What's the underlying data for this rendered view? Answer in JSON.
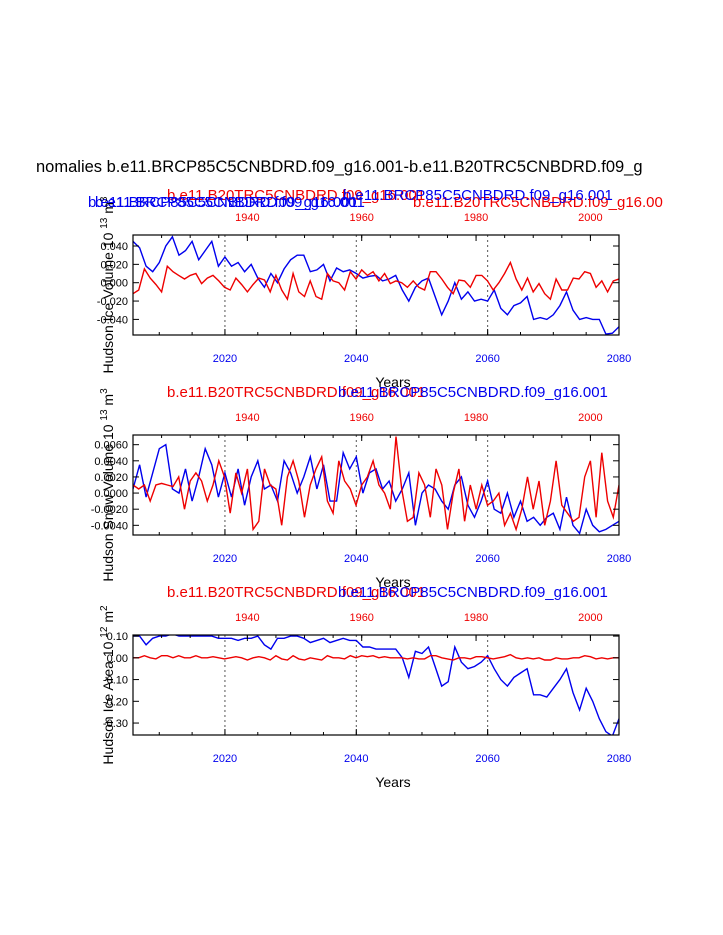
{
  "page": {
    "main_title": "nomalies b.e11.BRCP85C5CNBDRD.f09_g16.001-b.e11.B20TRC5CNBDRD.f09_g",
    "overlap_header_blue": "b.e11.BRCP85C5CNBDRD.f09_g16.001",
    "overlap_header_red_left": "b.e11.B20TRC5CNBDRD.f09_g16.001",
    "overlap_header_red_right": "b.e11.B20TRC5CNBDRD.f09_g16.00"
  },
  "colors": {
    "blue": "#0000ee",
    "red": "#ee0000",
    "axis": "#000000",
    "grid": "#555555"
  },
  "chart_data": [
    {
      "type": "line",
      "title_red": "b.e11.B20TRC5CNBDRD.f09_g16.001",
      "title_blue": "b.e11.BRCP85C5CNBDRD.f09_g16.001",
      "ylabel": "Hudson Ice Volume 10^13 m^3",
      "ylabel_main": "Hudson Ice Volume 10",
      "ylabel_exp": "13",
      "ylabel_unit": "m",
      "ylabel_unit_exp": "3",
      "xlabel": "Years",
      "bottom_xlim": [
        2006,
        2080
      ],
      "bottom_ticks": [
        "2020",
        "2040",
        "2060",
        "2080"
      ],
      "top_xlim": [
        1920,
        2005
      ],
      "top_ticks": [
        "1940",
        "1960",
        "1980",
        "2000"
      ],
      "ylim": [
        -0.057,
        0.052
      ],
      "yticks": [
        0.04,
        0.02,
        0.0,
        -0.02,
        -0.04
      ],
      "ytick_labels": [
        "0.040",
        "0.020",
        "0.000",
        "-0.020",
        "-0.040"
      ],
      "vlines": [
        2020,
        2040,
        2060
      ],
      "series": [
        {
          "name": "b.e11.BRCP85C5CNBDRD.f09_g16.001",
          "color": "blue",
          "x_start": 2006,
          "values": [
            0.045,
            0.038,
            0.018,
            0.012,
            0.022,
            0.04,
            0.05,
            0.03,
            0.035,
            0.045,
            0.025,
            0.035,
            0.045,
            0.018,
            0.028,
            0.018,
            0.022,
            0.012,
            0.02,
            0.005,
            -0.005,
            0.01,
            0.0,
            0.015,
            0.025,
            0.03,
            0.03,
            0.012,
            0.014,
            0.02,
            0.002,
            0.016,
            0.012,
            0.014,
            0.01,
            0.005,
            0.007,
            0.008,
            0.002,
            0.004,
            0.008,
            -0.008,
            -0.02,
            -0.005,
            0.002,
            0.005,
            -0.015,
            -0.035,
            -0.02,
            0.0,
            -0.018,
            -0.01,
            -0.02,
            -0.018,
            -0.02,
            -0.008,
            -0.028,
            -0.035,
            -0.025,
            -0.022,
            -0.015,
            -0.04,
            -0.038,
            -0.04,
            -0.035,
            -0.025,
            -0.01,
            -0.03,
            -0.04,
            -0.038,
            -0.04,
            -0.04,
            -0.056,
            -0.055,
            -0.048
          ]
        },
        {
          "name": "b.e11.B20TRC5CNBDRD.f09_g16.001",
          "color": "red",
          "x_start": 1920,
          "values": [
            -0.012,
            -0.008,
            0.015,
            0.005,
            -0.002,
            -0.01,
            0.018,
            0.012,
            0.008,
            0.004,
            0.008,
            0.01,
            -0.001,
            0.005,
            0.008,
            0.002,
            -0.005,
            -0.008,
            0.005,
            -0.002,
            -0.01,
            -0.002,
            0.005,
            0.003,
            -0.01,
            0.008,
            -0.008,
            -0.018,
            0.01,
            -0.01,
            -0.015,
            0.002,
            -0.015,
            -0.018,
            0.01,
            0.002,
            0.0,
            -0.008,
            0.012,
            0.004,
            0.014,
            0.008,
            0.012,
            0.002,
            0.01,
            -0.001,
            0.002,
            0.0,
            -0.005,
            0.002,
            -0.005,
            -0.008,
            0.012,
            0.012,
            0.004,
            -0.005,
            -0.012,
            0.003,
            0.002,
            -0.005,
            0.008,
            0.008,
            0.002,
            -0.008,
            0.0,
            0.01,
            0.022,
            0.004,
            -0.008,
            0.005,
            -0.01,
            -0.001,
            -0.012,
            -0.018,
            0.004,
            -0.008,
            -0.008,
            0.005,
            0.004,
            0.012,
            0.01,
            -0.005,
            0.002,
            -0.01,
            0.002,
            0.004,
            -0.005,
            -0.01
          ]
        }
      ]
    },
    {
      "type": "line",
      "title_red": "b.e11.B20TRC5CNBDRD.f09_g16.001",
      "title_blue": "b.e11.BRCP85C5CNBDRD.f09_g16.001",
      "ylabel": "Hudson Snow Volume 10^13 m^3",
      "ylabel_main": "Hudson Snow Volume 10",
      "ylabel_exp": "13",
      "ylabel_unit": "m",
      "ylabel_unit_exp": "3",
      "xlabel": "Years",
      "bottom_xlim": [
        2006,
        2080
      ],
      "bottom_ticks": [
        "2020",
        "2040",
        "2060",
        "2080"
      ],
      "top_xlim": [
        1920,
        2005
      ],
      "top_ticks": [
        "1940",
        "1960",
        "1980",
        "2000"
      ],
      "ylim": [
        -0.0052,
        0.0072
      ],
      "yticks": [
        0.006,
        0.004,
        0.002,
        0.0,
        -0.002,
        -0.004
      ],
      "ytick_labels": [
        "0.0060",
        "0.0040",
        "0.0020",
        "0.0000",
        "-0.0020",
        "-0.0040"
      ],
      "vlines": [
        2020,
        2040,
        2060
      ],
      "series": [
        {
          "name": "b.e11.BRCP85C5CNBDRD.f09_g16.001",
          "color": "blue",
          "x_start": 2006,
          "values": [
            0.0005,
            0.0035,
            -0.0005,
            0.0025,
            0.0055,
            0.006,
            0.0005,
            0.0,
            0.003,
            -0.001,
            0.002,
            0.0055,
            0.0035,
            -0.0005,
            0.0025,
            -0.0005,
            0.003,
            -0.0015,
            0.002,
            0.004,
            0.0005,
            0.001,
            -0.001,
            0.004,
            0.0025,
            0.0,
            0.002,
            0.0045,
            0.0005,
            0.0035,
            -0.001,
            -0.001,
            0.005,
            0.003,
            0.0045,
            0.0,
            0.0025,
            0.003,
            0.0005,
            0.0015,
            -0.001,
            0.0005,
            0.0025,
            -0.004,
            0.0,
            0.001,
            0.0005,
            -0.001,
            -0.002,
            0.001,
            0.002,
            -0.0015,
            -0.003,
            -0.001,
            0.0015,
            -0.002,
            -0.0025,
            0.0,
            -0.003,
            -0.001,
            -0.0035,
            -0.003,
            -0.004,
            -0.003,
            -0.0025,
            -0.0045,
            -0.0005,
            -0.004,
            -0.005,
            -0.002,
            -0.004,
            -0.0048,
            -0.0045,
            -0.004,
            -0.0035
          ]
        },
        {
          "name": "b.e11.B20TRC5CNBDRD.f09_g16.001",
          "color": "red",
          "x_start": 1920,
          "values": [
            0.001,
            0.0005,
            0.001,
            -0.001,
            0.001,
            0.0012,
            0.001,
            0.0008,
            0.002,
            -0.002,
            0.0015,
            0.0025,
            0.0015,
            -0.001,
            0.001,
            0.004,
            0.002,
            -0.0025,
            0.0025,
            0.0,
            0.003,
            -0.0045,
            -0.0035,
            0.003,
            0.001,
            0.0005,
            -0.004,
            0.002,
            0.004,
            0.0015,
            -0.003,
            0.001,
            0.003,
            0.0045,
            -0.001,
            -0.0025,
            0.004,
            0.0015,
            0.0005,
            -0.0015,
            0.001,
            0.002,
            0.004,
            0.001,
            0.0,
            -0.002,
            0.007,
            0.0005,
            -0.0035,
            -0.003,
            0.0025,
            0.001,
            -0.003,
            0.003,
            0.001,
            -0.0045,
            0.0,
            0.003,
            -0.0035,
            0.001,
            -0.002,
            0.001,
            -0.0015,
            -0.001,
            0.0,
            -0.004,
            -0.0025,
            -0.0045,
            -0.002,
            0.002,
            -0.002,
            0.0015,
            -0.004,
            -0.001,
            0.004,
            -0.0015,
            -0.0025,
            -0.0035,
            -0.003,
            0.002,
            0.004,
            -0.003,
            0.005,
            -0.001,
            -0.003,
            0.001,
            -0.003,
            -0.001,
            0.001,
            -0.0025,
            0.005
          ]
        }
      ]
    },
    {
      "type": "line",
      "title_red": "b.e11.B20TRC5CNBDRD.f09_g16.001",
      "title_blue": "b.e11.BRCP85C5CNBDRD.f09_g16.001",
      "ylabel": "Hudson Ice Area 10^12 m^2",
      "ylabel_main": "Hudson Ice Area 10",
      "ylabel_exp": "12",
      "ylabel_unit": "m",
      "ylabel_unit_exp": "2",
      "xlabel": "Years",
      "bottom_xlim": [
        2006,
        2080
      ],
      "bottom_ticks": [
        "2020",
        "2040",
        "2060",
        "2080"
      ],
      "top_xlim": [
        1920,
        2005
      ],
      "top_ticks": [
        "1940",
        "1960",
        "1980",
        "2000"
      ],
      "ylim": [
        -0.355,
        0.105
      ],
      "yticks": [
        0.1,
        0.0,
        -0.1,
        -0.2,
        -0.3
      ],
      "ytick_labels": [
        "0.10",
        "0.00",
        "-0.10",
        "-0.20",
        "-0.30"
      ],
      "vlines": [
        2020,
        2040,
        2060
      ],
      "series": [
        {
          "name": "b.e11.BRCP85C5CNBDRD.f09_g16.001",
          "color": "blue",
          "x_start": 2006,
          "values": [
            0.1,
            0.1,
            0.06,
            0.09,
            0.1,
            0.1,
            0.11,
            0.1,
            0.1,
            0.1,
            0.1,
            0.1,
            0.1,
            0.09,
            0.09,
            0.09,
            0.08,
            0.09,
            0.09,
            0.1,
            0.06,
            0.04,
            0.09,
            0.09,
            0.1,
            0.1,
            0.09,
            0.07,
            0.08,
            0.09,
            0.07,
            0.08,
            0.09,
            0.08,
            0.08,
            0.05,
            0.05,
            0.04,
            0.04,
            0.04,
            0.04,
            0.0,
            -0.09,
            0.03,
            0.02,
            0.05,
            -0.04,
            -0.13,
            -0.11,
            0.05,
            -0.02,
            -0.05,
            -0.04,
            -0.02,
            0.01,
            -0.05,
            -0.1,
            -0.13,
            -0.09,
            -0.07,
            -0.05,
            -0.17,
            -0.17,
            -0.18,
            -0.14,
            -0.1,
            -0.05,
            -0.16,
            -0.24,
            -0.14,
            -0.2,
            -0.28,
            -0.34,
            -0.36,
            -0.28
          ]
        },
        {
          "name": "b.e11.B20TRC5CNBDRD.f09_g16.001",
          "color": "red",
          "x_start": 1920,
          "values": [
            0.0,
            0.0,
            0.01,
            0.0,
            -0.005,
            0.01,
            0.01,
            0.0,
            0.01,
            0.0,
            0.0,
            0.01,
            0.0,
            0.0,
            0.005,
            0.0,
            -0.005,
            0.0,
            0.005,
            0.0,
            -0.01,
            0.0,
            0.005,
            0.0,
            -0.01,
            0.01,
            -0.005,
            -0.01,
            0.01,
            -0.005,
            -0.01,
            0.0,
            -0.005,
            -0.01,
            0.01,
            0.0,
            0.0,
            -0.005,
            0.01,
            0.0,
            0.01,
            0.005,
            0.01,
            0.0,
            0.005,
            0.0,
            0.0,
            0.0,
            -0.005,
            0.0,
            -0.005,
            -0.005,
            0.01,
            0.01,
            0.0,
            -0.005,
            -0.01,
            0.0,
            0.0,
            -0.005,
            0.005,
            0.005,
            0.0,
            -0.005,
            0.0,
            0.005,
            0.015,
            0.0,
            -0.005,
            0.0,
            -0.005,
            0.0,
            -0.01,
            -0.01,
            0.0,
            -0.005,
            -0.005,
            0.0,
            0.0,
            0.01,
            0.005,
            -0.005,
            0.0,
            -0.005,
            0.0,
            0.0,
            -0.005,
            -0.005
          ]
        }
      ]
    }
  ]
}
